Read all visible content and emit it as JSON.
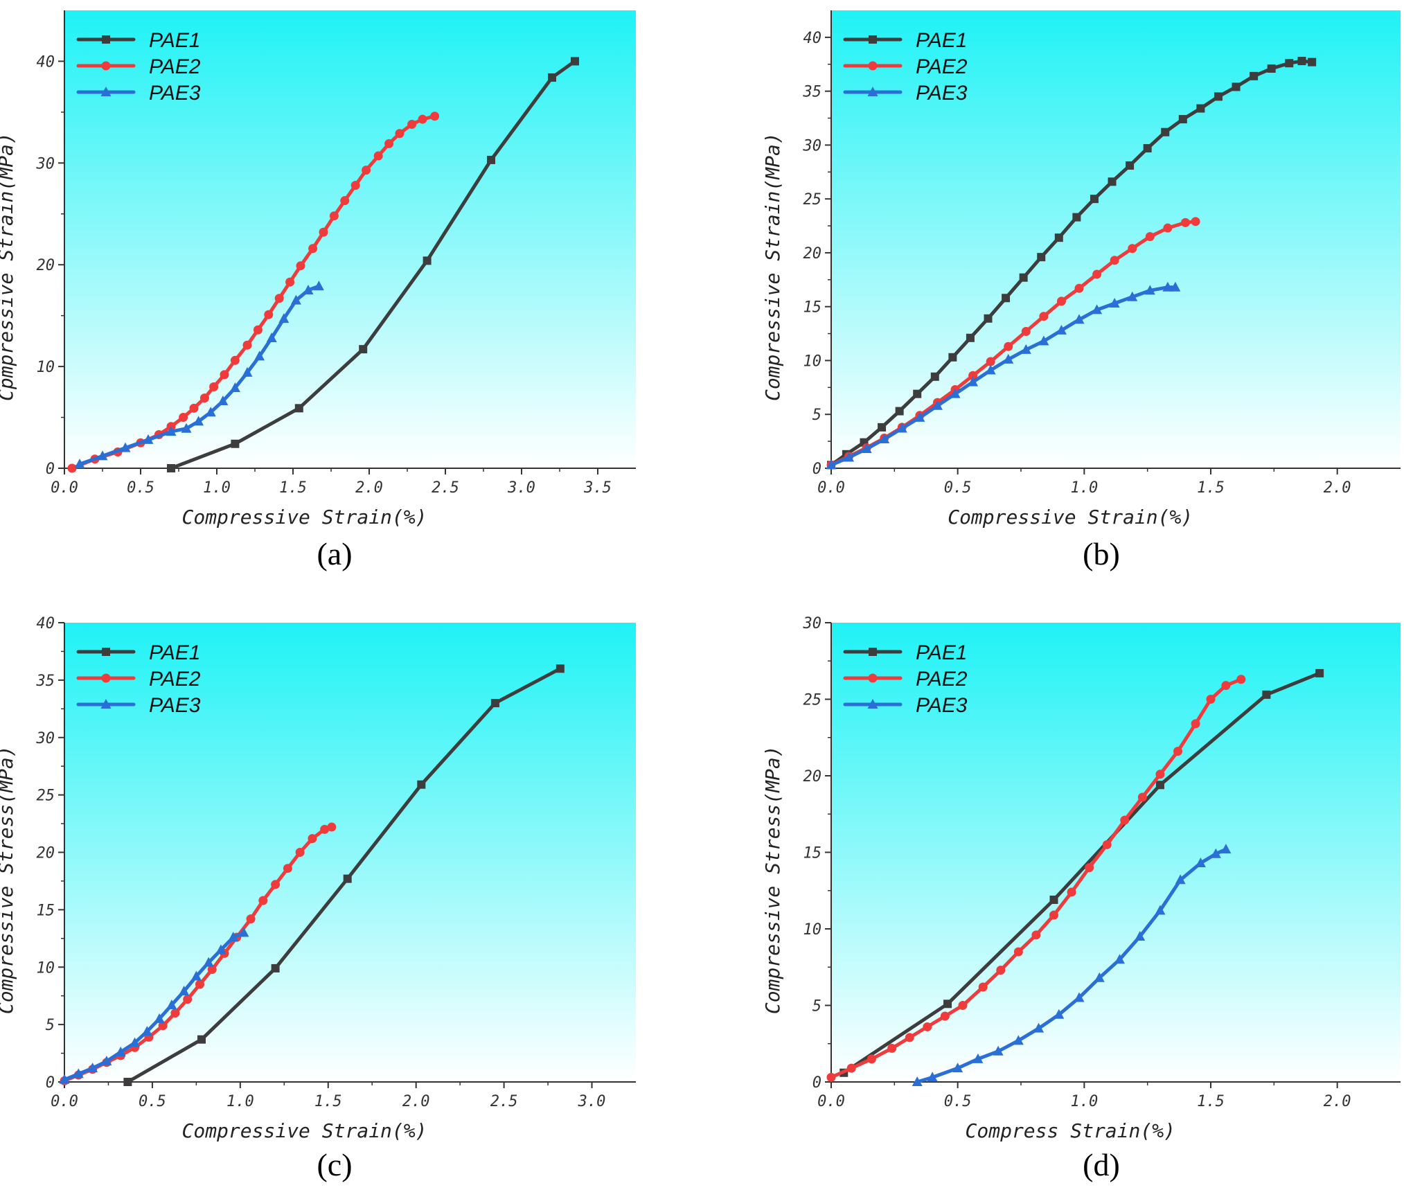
{
  "colors": {
    "PAE1": "#3d3d3d",
    "PAE2": "#ef3b3b",
    "PAE3": "#2a6fd6",
    "bg_top": "#1ff2f5",
    "bg_bottom": "#ffffff"
  },
  "chart_data": [
    {
      "type": "line",
      "panel_label": "(a)",
      "title": "",
      "xlabel": "Compressive Strain(%)",
      "ylabel": "Cpmpressive Strain(MPa)",
      "xlim": [
        0,
        3.75
      ],
      "ylim": [
        0,
        45
      ],
      "xticks": [
        0,
        0.5,
        1,
        1.5,
        2,
        2.5,
        3,
        3.5
      ],
      "xtick_labels": [
        "0.0",
        "0.5",
        "1.0",
        "1.5",
        "2.0",
        "2.5",
        "3.0",
        "3.5"
      ],
      "yticks": [
        0,
        10,
        20,
        30,
        40
      ],
      "ytick_labels": [
        "0",
        "10",
        "20",
        "30",
        "40"
      ],
      "legend_position": "top-left",
      "series": [
        {
          "name": "PAE1",
          "marker": "square",
          "x": [
            0.7,
            1.12,
            1.54,
            1.96,
            2.38,
            2.8,
            3.2,
            3.35
          ],
          "y": [
            0,
            2.4,
            5.9,
            11.7,
            20.4,
            30.3,
            38.4,
            40
          ]
        },
        {
          "name": "PAE2",
          "marker": "circle",
          "x": [
            0.05,
            0.2,
            0.35,
            0.5,
            0.62,
            0.7,
            0.78,
            0.85,
            0.92,
            0.98,
            1.05,
            1.12,
            1.2,
            1.27,
            1.34,
            1.41,
            1.48,
            1.55,
            1.63,
            1.7,
            1.77,
            1.84,
            1.91,
            1.98,
            2.06,
            2.13,
            2.2,
            2.28,
            2.35,
            2.43
          ],
          "y": [
            0,
            0.9,
            1.6,
            2.5,
            3.3,
            4.1,
            5.0,
            5.9,
            6.9,
            8.0,
            9.2,
            10.6,
            12.1,
            13.6,
            15.1,
            16.7,
            18.3,
            19.9,
            21.6,
            23.2,
            24.8,
            26.3,
            27.8,
            29.3,
            30.7,
            31.9,
            32.9,
            33.8,
            34.3,
            34.6
          ]
        },
        {
          "name": "PAE3",
          "marker": "triangle",
          "x": [
            0.1,
            0.25,
            0.4,
            0.55,
            0.7,
            0.8,
            0.88,
            0.96,
            1.04,
            1.12,
            1.2,
            1.28,
            1.36,
            1.44,
            1.52,
            1.6,
            1.67
          ],
          "y": [
            0.4,
            1.2,
            2.0,
            2.8,
            3.6,
            3.9,
            4.6,
            5.5,
            6.6,
            7.9,
            9.4,
            11.0,
            12.8,
            14.7,
            16.5,
            17.5,
            17.9
          ]
        }
      ]
    },
    {
      "type": "line",
      "panel_label": "(b)",
      "title": "",
      "xlabel": "Compressive Strain(%)",
      "ylabel": "Compressive Strain(MPa)",
      "xlim": [
        0,
        2.25
      ],
      "ylim": [
        0,
        42.5
      ],
      "xticks": [
        0,
        0.5,
        1,
        1.5,
        2
      ],
      "xtick_labels": [
        "0.0",
        "0.5",
        "1.0",
        "1.5",
        "2.0"
      ],
      "yticks": [
        0,
        5,
        10,
        15,
        20,
        25,
        30,
        35,
        40
      ],
      "ytick_labels": [
        "0",
        "5",
        "10",
        "15",
        "20",
        "25",
        "30",
        "35",
        "40"
      ],
      "legend_position": "top-left",
      "series": [
        {
          "name": "PAE1",
          "marker": "square",
          "x": [
            0,
            0.06,
            0.13,
            0.2,
            0.27,
            0.34,
            0.41,
            0.48,
            0.55,
            0.62,
            0.69,
            0.76,
            0.83,
            0.9,
            0.97,
            1.04,
            1.11,
            1.18,
            1.25,
            1.32,
            1.39,
            1.46,
            1.53,
            1.6,
            1.67,
            1.74,
            1.81,
            1.86,
            1.9
          ],
          "y": [
            0.3,
            1.3,
            2.4,
            3.8,
            5.3,
            6.9,
            8.5,
            10.3,
            12.1,
            13.9,
            15.8,
            17.7,
            19.6,
            21.4,
            23.3,
            25.0,
            26.6,
            28.1,
            29.7,
            31.2,
            32.4,
            33.4,
            34.5,
            35.4,
            36.4,
            37.1,
            37.6,
            37.8,
            37.7
          ]
        },
        {
          "name": "PAE2",
          "marker": "circle",
          "x": [
            0,
            0.07,
            0.14,
            0.21,
            0.28,
            0.35,
            0.42,
            0.49,
            0.56,
            0.63,
            0.7,
            0.77,
            0.84,
            0.91,
            0.98,
            1.05,
            1.12,
            1.19,
            1.26,
            1.33,
            1.4,
            1.44
          ],
          "y": [
            0.3,
            1.1,
            1.9,
            2.8,
            3.8,
            4.9,
            6.1,
            7.3,
            8.6,
            9.9,
            11.3,
            12.7,
            14.1,
            15.5,
            16.7,
            18.0,
            19.3,
            20.4,
            21.5,
            22.3,
            22.8,
            22.9
          ]
        },
        {
          "name": "PAE3",
          "marker": "triangle",
          "x": [
            0,
            0.07,
            0.14,
            0.21,
            0.28,
            0.35,
            0.42,
            0.49,
            0.56,
            0.63,
            0.7,
            0.77,
            0.84,
            0.91,
            0.98,
            1.05,
            1.12,
            1.19,
            1.26,
            1.33,
            1.36
          ],
          "y": [
            0.3,
            1.0,
            1.8,
            2.7,
            3.7,
            4.7,
            5.8,
            6.9,
            8.0,
            9.1,
            10.1,
            11.0,
            11.8,
            12.8,
            13.8,
            14.7,
            15.3,
            15.9,
            16.5,
            16.8,
            16.8
          ]
        }
      ]
    },
    {
      "type": "line",
      "panel_label": "(c)",
      "title": "",
      "xlabel": "Compressive Strain(%)",
      "ylabel": "Compressive Stress(MPa)",
      "xlim": [
        0,
        3.25
      ],
      "ylim": [
        0,
        40
      ],
      "xticks": [
        0,
        0.5,
        1,
        1.5,
        2,
        2.5,
        3
      ],
      "xtick_labels": [
        "0.0",
        "0.5",
        "1.0",
        "1.5",
        "2.0",
        "2.5",
        "3.0"
      ],
      "yticks": [
        0,
        5,
        10,
        15,
        20,
        25,
        30,
        35,
        40
      ],
      "ytick_labels": [
        "0",
        "5",
        "10",
        "15",
        "20",
        "25",
        "30",
        "35",
        "40"
      ],
      "legend_position": "top-left",
      "series": [
        {
          "name": "PAE1",
          "marker": "square",
          "x": [
            0.36,
            0.78,
            1.2,
            1.61,
            2.03,
            2.45,
            2.82
          ],
          "y": [
            0,
            3.7,
            9.9,
            17.7,
            25.9,
            33.0,
            36.0
          ]
        },
        {
          "name": "PAE2",
          "marker": "circle",
          "x": [
            0,
            0.08,
            0.16,
            0.24,
            0.32,
            0.4,
            0.48,
            0.56,
            0.63,
            0.7,
            0.77,
            0.84,
            0.91,
            0.98,
            1.06,
            1.13,
            1.2,
            1.27,
            1.34,
            1.41,
            1.48,
            1.52
          ],
          "y": [
            0.1,
            0.6,
            1.1,
            1.7,
            2.3,
            3.0,
            3.9,
            4.9,
            6.0,
            7.2,
            8.5,
            9.8,
            11.2,
            12.6,
            14.2,
            15.8,
            17.2,
            18.6,
            20.0,
            21.2,
            22.0,
            22.2
          ]
        },
        {
          "name": "PAE3",
          "marker": "triangle",
          "x": [
            0,
            0.08,
            0.16,
            0.24,
            0.32,
            0.4,
            0.47,
            0.54,
            0.61,
            0.68,
            0.75,
            0.82,
            0.89,
            0.96,
            1.02
          ],
          "y": [
            0.2,
            0.7,
            1.2,
            1.8,
            2.6,
            3.4,
            4.4,
            5.5,
            6.7,
            7.9,
            9.2,
            10.4,
            11.5,
            12.6,
            13.0
          ]
        }
      ]
    },
    {
      "type": "line",
      "panel_label": "(d)",
      "title": "",
      "xlabel": "Compress Strain(%)",
      "ylabel": "Compressive Stress(MPa)",
      "xlim": [
        0,
        2.25
      ],
      "ylim": [
        0,
        30
      ],
      "xticks": [
        0,
        0.5,
        1,
        1.5,
        2
      ],
      "xtick_labels": [
        "0.0",
        "0.5",
        "1.0",
        "1.5",
        "2.0"
      ],
      "yticks": [
        0,
        5,
        10,
        15,
        20,
        25,
        30
      ],
      "ytick_labels": [
        "0",
        "5",
        "10",
        "15",
        "20",
        "25",
        "30"
      ],
      "legend_position": "top-left",
      "series": [
        {
          "name": "PAE1",
          "marker": "square",
          "x": [
            0.05,
            0.46,
            0.88,
            1.3,
            1.72,
            1.93
          ],
          "y": [
            0.6,
            5.1,
            11.9,
            19.4,
            25.3,
            26.7
          ]
        },
        {
          "name": "PAE2",
          "marker": "circle",
          "x": [
            0,
            0.08,
            0.16,
            0.24,
            0.31,
            0.38,
            0.45,
            0.52,
            0.6,
            0.67,
            0.74,
            0.81,
            0.88,
            0.95,
            1.02,
            1.09,
            1.16,
            1.23,
            1.3,
            1.37,
            1.44,
            1.5,
            1.56,
            1.62
          ],
          "y": [
            0.3,
            0.9,
            1.5,
            2.2,
            2.9,
            3.6,
            4.3,
            5.0,
            6.2,
            7.3,
            8.5,
            9.6,
            10.9,
            12.4,
            14.0,
            15.5,
            17.1,
            18.6,
            20.1,
            21.6,
            23.4,
            25.0,
            25.9,
            26.3
          ]
        },
        {
          "name": "PAE3",
          "marker": "triangle",
          "x": [
            0.34,
            0.4,
            0.5,
            0.58,
            0.66,
            0.74,
            0.82,
            0.9,
            0.98,
            1.06,
            1.14,
            1.22,
            1.3,
            1.38,
            1.46,
            1.52,
            1.56
          ],
          "y": [
            0,
            0.3,
            0.9,
            1.5,
            2.0,
            2.7,
            3.5,
            4.4,
            5.5,
            6.8,
            8.0,
            9.5,
            11.2,
            13.2,
            14.3,
            14.9,
            15.2
          ]
        }
      ]
    }
  ]
}
